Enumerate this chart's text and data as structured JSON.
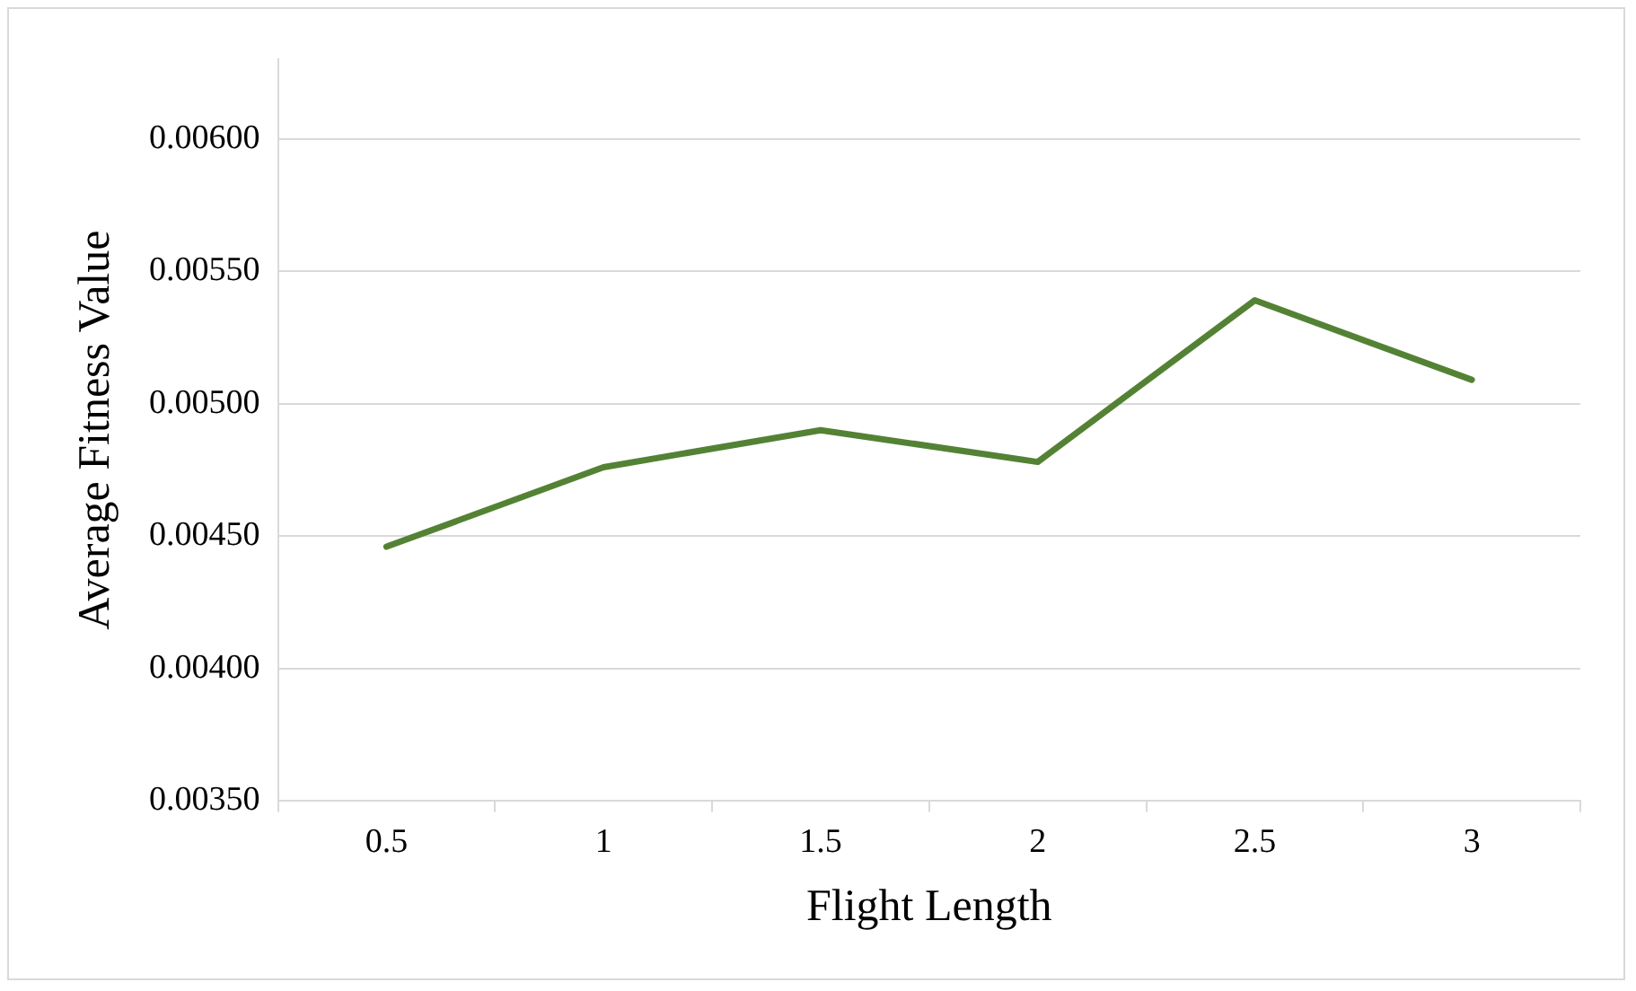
{
  "chart_data": {
    "type": "line",
    "xlabel": "Flight Length",
    "ylabel": "Average Fitness Value",
    "categories": [
      "0.5",
      "1",
      "1.5",
      "2",
      "2.5",
      "3"
    ],
    "series": [
      {
        "color": "#548235",
        "values": [
          0.00446,
          0.00476,
          0.0049,
          0.00478,
          0.00539,
          0.00509
        ]
      }
    ],
    "ylim": [
      0.0035,
      0.0063
    ],
    "yticks": [
      {
        "value": 0.0035,
        "label": "0.00350"
      },
      {
        "value": 0.004,
        "label": "0.00400"
      },
      {
        "value": 0.0045,
        "label": "0.00450"
      },
      {
        "value": 0.005,
        "label": "0.00500"
      },
      {
        "value": 0.0055,
        "label": "0.00550"
      },
      {
        "value": 0.006,
        "label": "0.00600"
      }
    ],
    "grid": "y",
    "legend": false,
    "marker": "none",
    "line_style": "solid"
  }
}
